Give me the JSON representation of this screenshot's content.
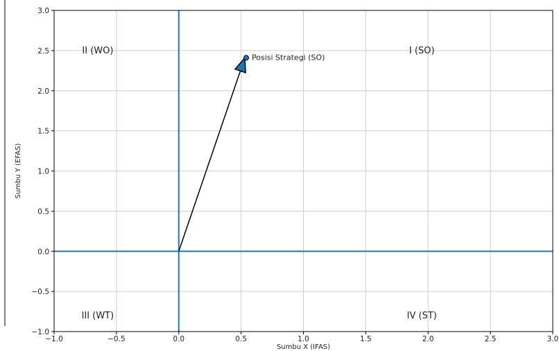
{
  "chart_data": {
    "type": "scatter",
    "title": "",
    "xlabel": "Sumbu X (IFAS)",
    "ylabel": "Sumbu Y (EFAS)",
    "xlim": [
      -1.0,
      3.0
    ],
    "ylim": [
      -1.0,
      3.0
    ],
    "x_ticks": [
      "−1.0",
      "−0.5",
      "0.0",
      "0.5",
      "1.0",
      "1.5",
      "2.0",
      "2.5",
      "3.0"
    ],
    "x_tick_values": [
      -1.0,
      -0.5,
      0.0,
      0.5,
      1.0,
      1.5,
      2.0,
      2.5,
      3.0
    ],
    "y_ticks": [
      "−1.0",
      "−0.5",
      "0.0",
      "0.5",
      "1.0",
      "1.5",
      "2.0",
      "2.5",
      "3.0"
    ],
    "y_tick_values": [
      -1.0,
      -0.5,
      0.0,
      0.5,
      1.0,
      1.5,
      2.0,
      2.5,
      3.0
    ],
    "grid": true,
    "reference_lines": {
      "x": 0.0,
      "y": 0.0
    },
    "point": {
      "x": 0.53,
      "y": 2.41,
      "label": "Posisi Strategi (SO)"
    },
    "arrow": {
      "from": [
        0.0,
        0.0
      ],
      "to": [
        0.53,
        2.41
      ]
    },
    "quadrant_labels": [
      {
        "text": "II (WO)",
        "x": -0.65,
        "y": 2.5
      },
      {
        "text": "I (SO)",
        "x": 1.95,
        "y": 2.5
      },
      {
        "text": "III (WT)",
        "x": -0.65,
        "y": -0.8
      },
      {
        "text": "IV (ST)",
        "x": 1.95,
        "y": -0.8
      }
    ],
    "colors": {
      "reference": "#1f77b4",
      "point": "#1f77b4",
      "arrow": "#000000",
      "grid": "#cccccc"
    }
  }
}
